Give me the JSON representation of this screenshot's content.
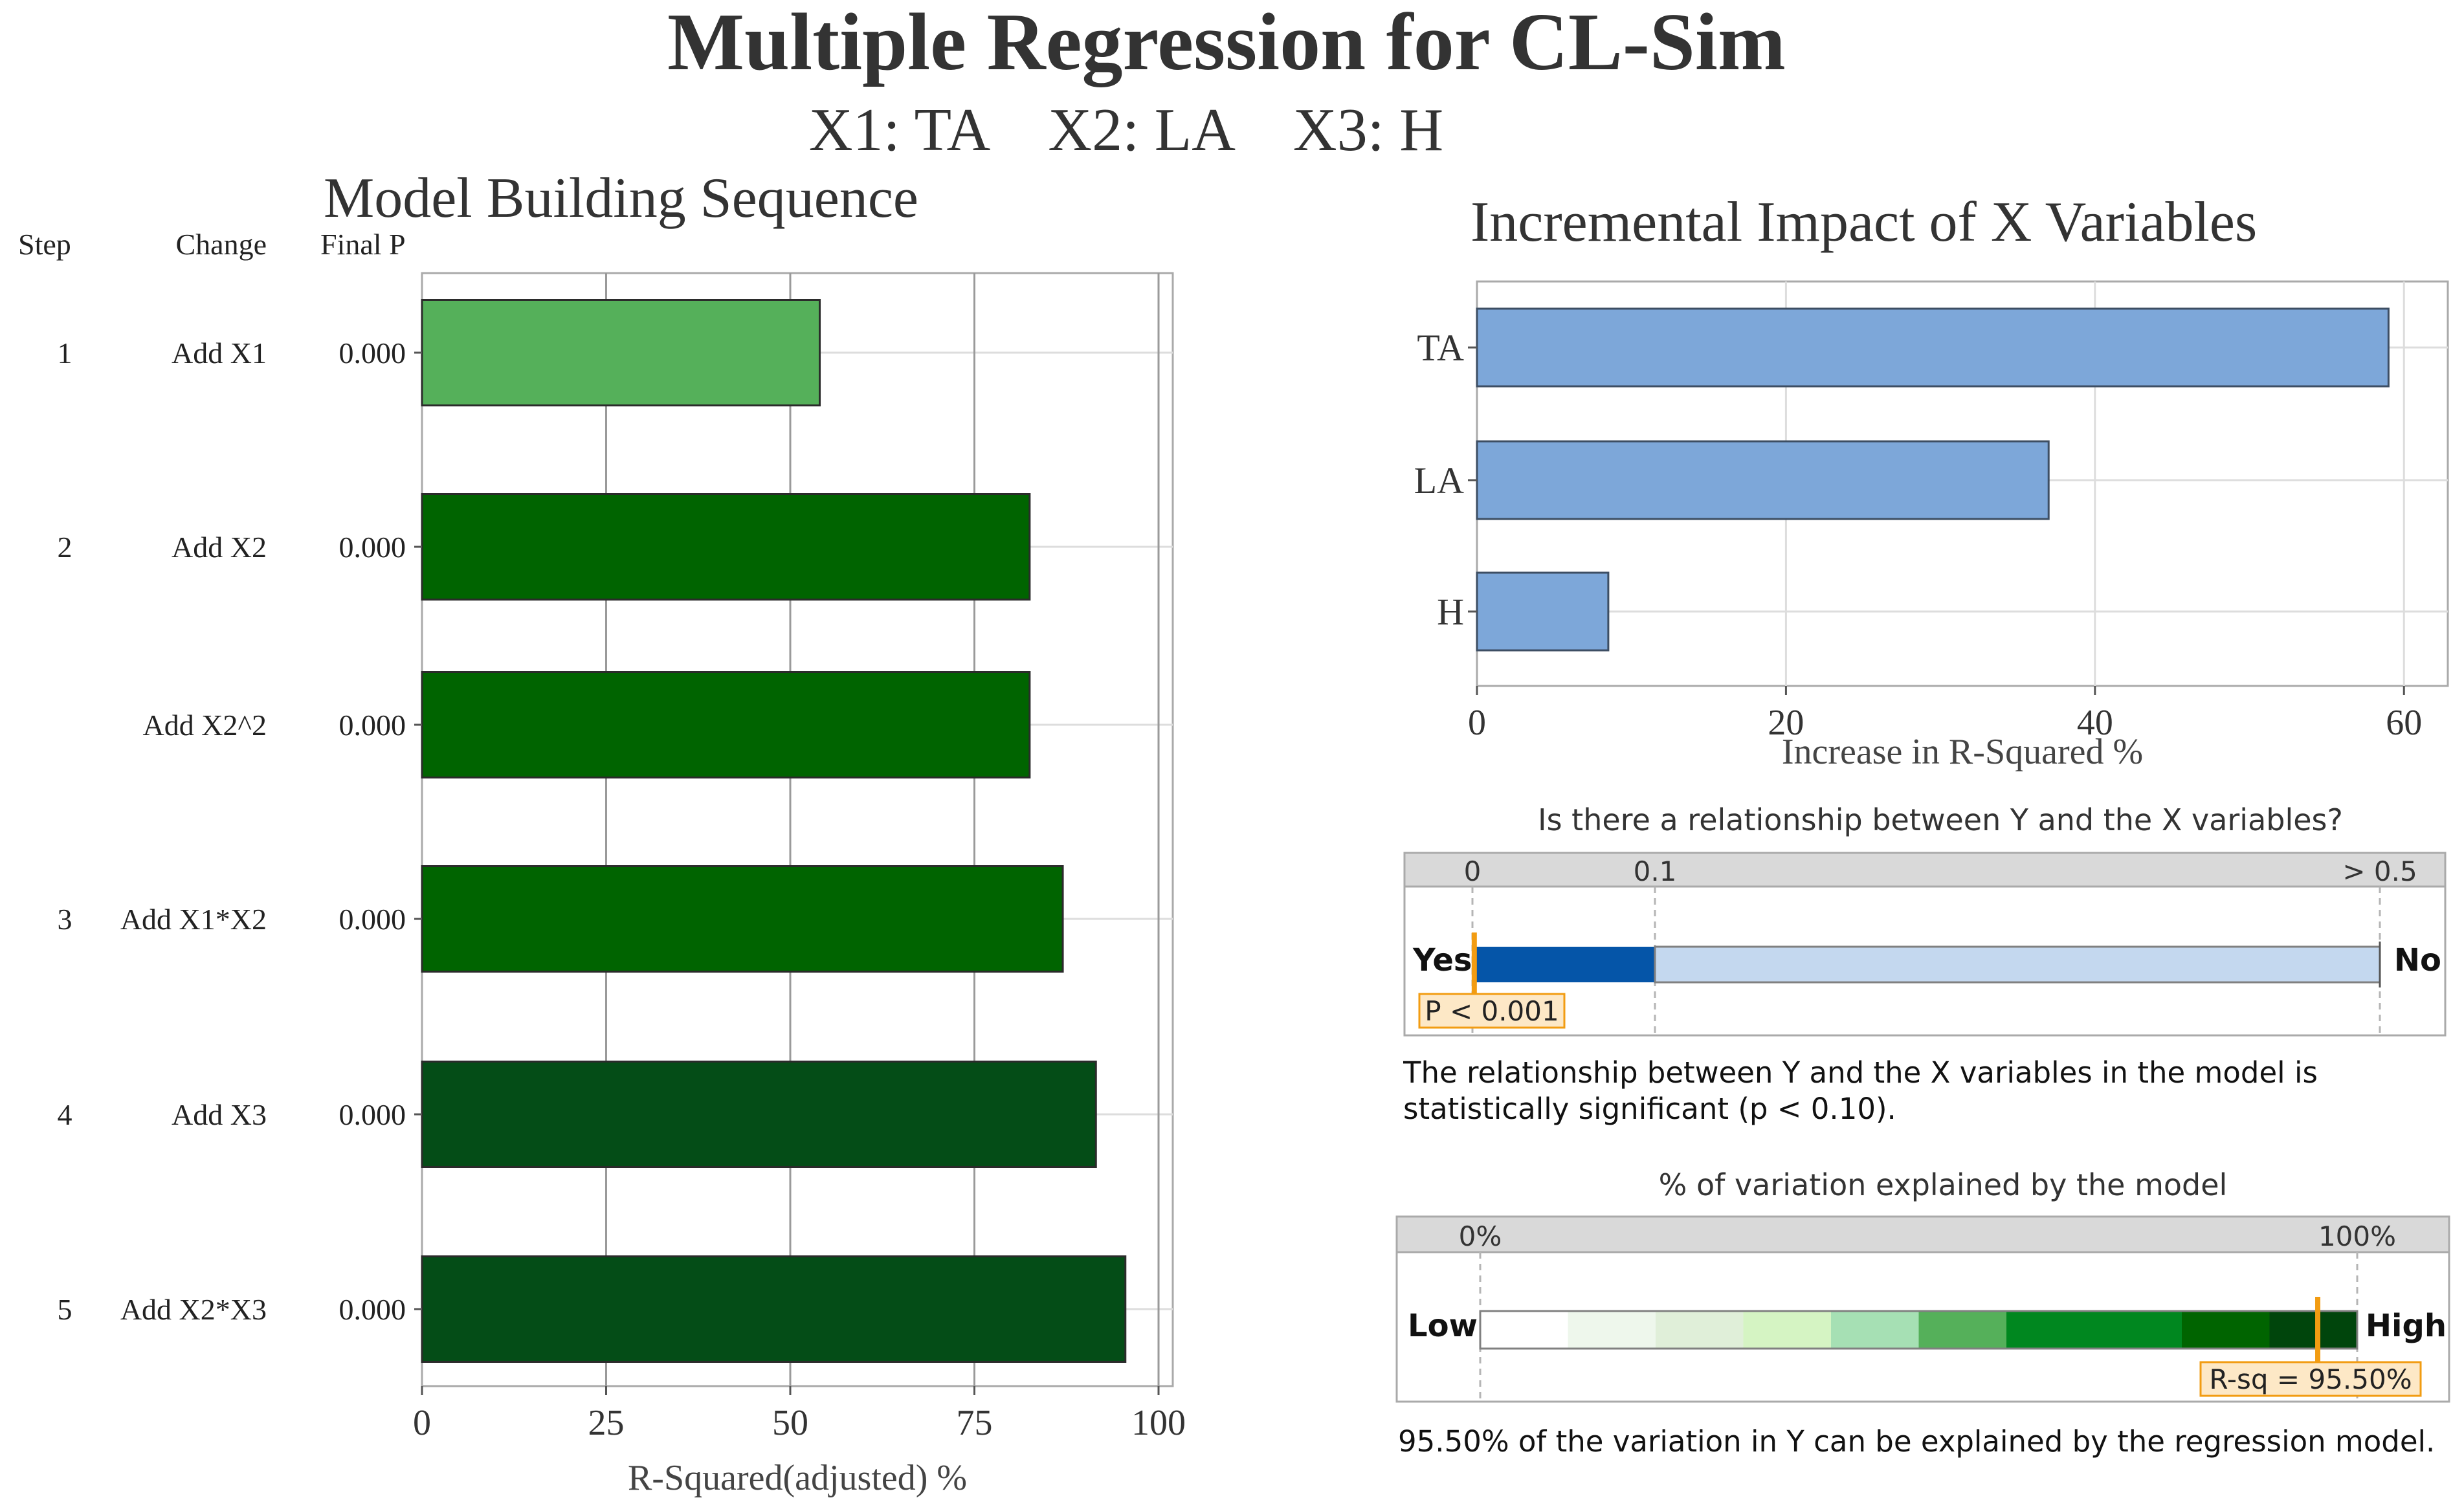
{
  "header": {
    "title": "Multiple Regression for CL-Sim",
    "subtitle": "X1: TA    X2: LA    X3: H"
  },
  "colors": {
    "light_green": "#55b05a",
    "green": "#006400",
    "dark_green": "#044d17",
    "blue_bar": "#7da7d9",
    "p_dark": "#0555a8",
    "p_light": "#c4d8ef",
    "marker": "#f29c12",
    "label_bg": "#fde8c6",
    "grid": "#dddddd",
    "strip": "#d9d9d9"
  },
  "chart_data": [
    {
      "id": "model_building",
      "type": "bar",
      "orientation": "horizontal",
      "title": "Model Building Sequence",
      "column_headers": {
        "step": "Step",
        "change": "Change",
        "final_p": "Final P"
      },
      "rows": [
        {
          "step": "1",
          "change": "Add X1",
          "final_p": "0.000",
          "value": 54,
          "color": "light_green"
        },
        {
          "step": "2",
          "change": "Add X2",
          "final_p": "0.000",
          "value": 82.5,
          "color": "green"
        },
        {
          "step": "",
          "change": "Add X2^2",
          "final_p": "0.000",
          "value": 82.5,
          "color": "green"
        },
        {
          "step": "3",
          "change": "Add X1*X2",
          "final_p": "0.000",
          "value": 87,
          "color": "green"
        },
        {
          "step": "4",
          "change": "Add X3",
          "final_p": "0.000",
          "value": 91.5,
          "color": "dark_green"
        },
        {
          "step": "5",
          "change": "Add X2*X3",
          "final_p": "0.000",
          "value": 95.5,
          "color": "dark_green"
        }
      ],
      "xlim": [
        0,
        100
      ],
      "xticks": [
        0,
        25,
        50,
        75,
        100
      ],
      "xlabel": "R-Squared(adjusted) %"
    },
    {
      "id": "incremental_impact",
      "type": "bar",
      "orientation": "horizontal",
      "title": "Incremental Impact of X Variables",
      "categories": [
        "TA",
        "LA",
        "H"
      ],
      "values": [
        59,
        37,
        8.5
      ],
      "xlim": [
        0,
        62
      ],
      "xticks": [
        0,
        20,
        40,
        60
      ],
      "xlabel": "Increase in R-Squared %"
    },
    {
      "id": "p_value_gauge",
      "type": "gauge",
      "title": "Is there a relationship between Y and the X variables?",
      "scale_labels": [
        "0",
        "0.1",
        "> 0.5"
      ],
      "scale_values": [
        0,
        0.1,
        0.5
      ],
      "left_label": "Yes",
      "right_label": "No",
      "marker_value": 0.001,
      "marker_label": "P < 0.001",
      "note": "The relationship between Y and the X variables in the model is statistically significant (p < 0.10)."
    },
    {
      "id": "r_squared_gauge",
      "type": "gauge",
      "title": "% of variation explained by the model",
      "scale_labels": [
        "0%",
        "100%"
      ],
      "left_label": "Low",
      "right_label": "High",
      "marker_value": 95.5,
      "marker_label": "R-sq = 95.50%",
      "note": "95.50% of the variation in Y can be explained by the regression model.",
      "bands": [
        {
          "from": 0,
          "to": 10,
          "color": "#ffffff"
        },
        {
          "from": 10,
          "to": 20,
          "color": "#eef7ec"
        },
        {
          "from": 20,
          "to": 30,
          "color": "#e0efd9"
        },
        {
          "from": 30,
          "to": 40,
          "color": "#d5f4c3"
        },
        {
          "from": 40,
          "to": 50,
          "color": "#a6e0b4"
        },
        {
          "from": 50,
          "to": 60,
          "color": "#55b05a"
        },
        {
          "from": 60,
          "to": 80,
          "color": "#00871f"
        },
        {
          "from": 80,
          "to": 90,
          "color": "#006400"
        },
        {
          "from": 90,
          "to": 100,
          "color": "#00450c"
        }
      ]
    }
  ]
}
